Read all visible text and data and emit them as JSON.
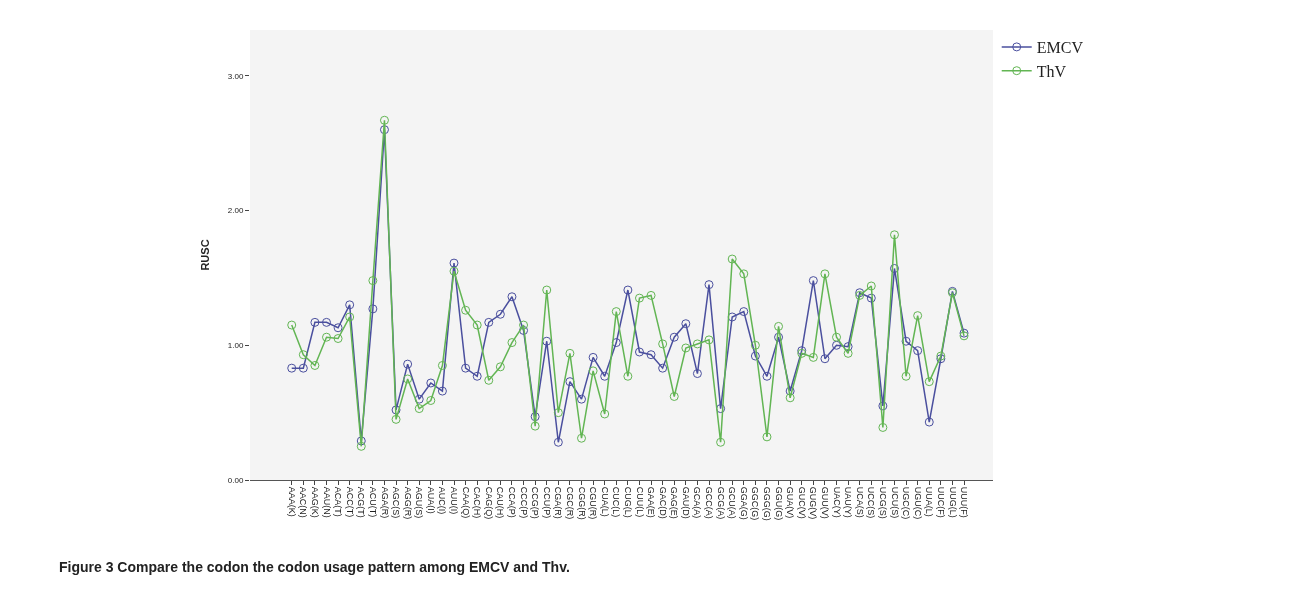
{
  "chart_data": {
    "type": "line",
    "ylabel": "RUSC",
    "categories": [
      "AAA(K)",
      "AAC(N)",
      "AAG(K)",
      "AAU(N)",
      "ACA(T)",
      "ACC(T)",
      "ACG(T)",
      "ACU(T)",
      "AGA(R)",
      "AGC(S)",
      "AGG(R)",
      "AGU(S)",
      "AUA(I)",
      "AUC(I)",
      "AUU(I)",
      "CAA(Q)",
      "CAC(H)",
      "CAG(Q)",
      "CAU(H)",
      "CCA(P)",
      "CCC(P)",
      "CCG(P)",
      "CCU(P)",
      "CGA(R)",
      "CGC(R)",
      "CGG(R)",
      "CGU(R)",
      "CUA(L)",
      "CUC(L)",
      "CUG(L)",
      "CUU(L)",
      "GAA(E)",
      "GAC(D)",
      "GAG(E)",
      "GAU(D)",
      "GCA(A)",
      "GCC(A)",
      "GCG(A)",
      "GCU(A)",
      "GGA(G)",
      "GGC(G)",
      "GGG(G)",
      "GGU(G)",
      "GUA(V)",
      "GUC(V)",
      "GUG(V)",
      "GUU(V)",
      "UAC(Y)",
      "UAU(Y)",
      "UCA(S)",
      "UCC(S)",
      "UCG(S)",
      "UCU(S)",
      "UGC(C)",
      "UGU(C)",
      "UUA(L)",
      "UUC(F)",
      "UUG(L)",
      "UUU(F)"
    ],
    "series": [
      {
        "name": "EMCV",
        "color": "#4a4f9e",
        "values": [
          0.83,
          0.83,
          1.17,
          1.17,
          1.13,
          1.3,
          0.29,
          1.27,
          2.6,
          0.52,
          0.86,
          0.6,
          0.72,
          0.66,
          1.61,
          0.83,
          0.77,
          1.17,
          1.23,
          1.36,
          1.11,
          0.47,
          1.03,
          0.28,
          0.73,
          0.6,
          0.91,
          0.77,
          1.02,
          1.41,
          0.95,
          0.93,
          0.83,
          1.06,
          1.16,
          0.79,
          1.45,
          0.53,
          1.21,
          1.25,
          0.92,
          0.77,
          1.06,
          0.66,
          0.96,
          1.48,
          0.9,
          1.0,
          0.99,
          1.39,
          1.35,
          0.55,
          1.57,
          1.03,
          0.96,
          0.43,
          0.9,
          1.4,
          1.09
        ]
      },
      {
        "name": "ThV",
        "color": "#62b553",
        "values": [
          1.15,
          0.93,
          0.85,
          1.06,
          1.05,
          1.21,
          0.25,
          1.48,
          2.67,
          0.45,
          0.75,
          0.53,
          0.59,
          0.85,
          1.55,
          1.26,
          1.15,
          0.74,
          0.84,
          1.02,
          1.15,
          0.4,
          1.41,
          0.5,
          0.94,
          0.31,
          0.81,
          0.49,
          1.25,
          0.77,
          1.35,
          1.37,
          1.01,
          0.62,
          0.98,
          1.01,
          1.04,
          0.28,
          1.64,
          1.53,
          1.0,
          0.32,
          1.14,
          0.61,
          0.94,
          0.91,
          1.53,
          1.06,
          0.94,
          1.37,
          1.44,
          0.39,
          1.82,
          0.77,
          1.22,
          0.73,
          0.92,
          1.39,
          1.07
        ]
      }
    ],
    "ylim": [
      0,
      3.34
    ],
    "yticks": [
      {
        "value": 0,
        "label": "0.00"
      },
      {
        "value": 1,
        "label": "1.00"
      },
      {
        "value": 2,
        "label": "2.00"
      },
      {
        "value": 3,
        "label": "3.00"
      }
    ],
    "grid": false,
    "legend": "top right",
    "marker": "circle",
    "line_style": "solid",
    "annotations": [
      "Figure 3 Compare the codon the codon usage pattern among EMCV and Thv."
    ]
  }
}
